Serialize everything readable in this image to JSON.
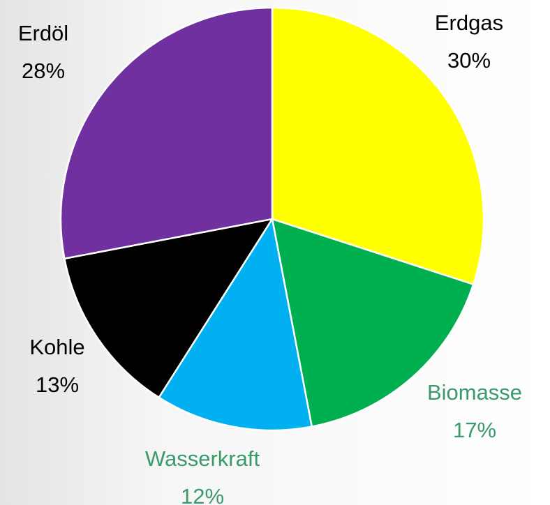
{
  "chart_data": {
    "type": "pie",
    "categories": [
      "Erdgas",
      "Biomasse",
      "Wasserkraft",
      "Kohle",
      "Erdöl"
    ],
    "values": [
      30,
      17,
      12,
      13,
      28
    ],
    "value_labels": [
      "30%",
      "17%",
      "12%",
      "13%",
      "28%"
    ],
    "colors": [
      "#ffff00",
      "#00b050",
      "#00b0f0",
      "#000000",
      "#7030a0"
    ],
    "label_colors": [
      "#000000",
      "#3a9a6a",
      "#3a9a6a",
      "#000000",
      "#000000"
    ]
  }
}
